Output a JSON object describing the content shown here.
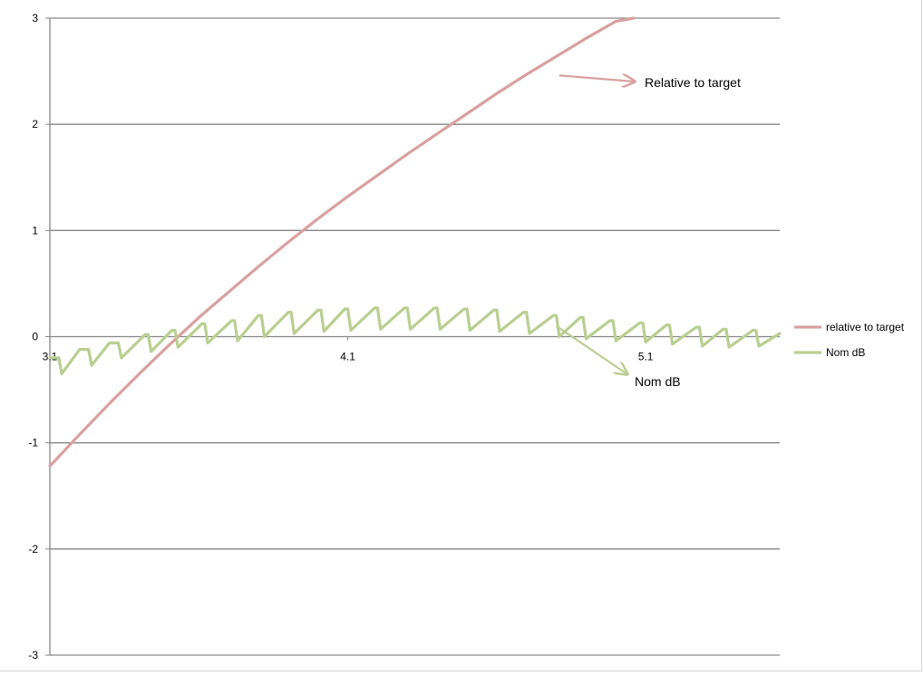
{
  "chart_data": {
    "type": "line",
    "title": "",
    "xlabel": "",
    "ylabel": "",
    "xlim": [
      3.1,
      5.55
    ],
    "ylim": [
      -3,
      3
    ],
    "x_ticks": [
      "3.1",
      "4.1",
      "5.1"
    ],
    "y_ticks": [
      "3",
      "2",
      "1",
      "0",
      "-1",
      "-2",
      "-3"
    ],
    "grid": "horizontal",
    "legend_position": "right",
    "series": [
      {
        "name": "relative to target",
        "color": "#d9a0a0",
        "x": [
          3.1,
          3.2,
          3.3,
          3.4,
          3.5,
          3.6,
          3.7,
          3.8,
          3.9,
          4.0,
          4.1,
          4.2,
          4.3,
          4.4,
          4.5,
          4.6,
          4.7,
          4.8,
          4.9,
          5.0,
          5.06
        ],
        "y": [
          -1.22,
          -0.92,
          -0.63,
          -0.35,
          -0.08,
          0.18,
          0.42,
          0.66,
          0.89,
          1.11,
          1.32,
          1.52,
          1.72,
          1.91,
          2.1,
          2.29,
          2.47,
          2.64,
          2.81,
          2.97,
          3.0
        ]
      },
      {
        "name": "Nom dB",
        "color": "#b9cf91",
        "x": [
          3.1,
          3.13,
          3.14,
          3.2,
          3.23,
          3.24,
          3.3,
          3.33,
          3.34,
          3.42,
          3.43,
          3.44,
          3.51,
          3.52,
          3.53,
          3.61,
          3.62,
          3.63,
          3.71,
          3.72,
          3.73,
          3.8,
          3.81,
          3.82,
          3.9,
          3.91,
          3.92,
          4.0,
          4.01,
          4.02,
          4.09,
          4.1,
          4.11,
          4.19,
          4.2,
          4.21,
          4.29,
          4.3,
          4.31,
          4.39,
          4.4,
          4.41,
          4.49,
          4.5,
          4.51,
          4.59,
          4.6,
          4.61,
          4.69,
          4.7,
          4.71,
          4.79,
          4.8,
          4.81,
          4.88,
          4.89,
          4.9,
          4.98,
          4.99,
          5.0,
          5.08,
          5.09,
          5.1,
          5.17,
          5.18,
          5.19,
          5.27,
          5.28,
          5.29,
          5.36,
          5.37,
          5.38,
          5.46,
          5.47,
          5.48,
          5.55
        ],
        "y": [
          -0.2,
          -0.2,
          -0.35,
          -0.12,
          -0.12,
          -0.27,
          -0.06,
          -0.06,
          -0.2,
          0.02,
          0.02,
          -0.14,
          0.06,
          0.06,
          -0.1,
          0.12,
          0.12,
          -0.06,
          0.15,
          0.15,
          -0.04,
          0.2,
          0.2,
          0.0,
          0.23,
          0.23,
          0.03,
          0.25,
          0.25,
          0.05,
          0.26,
          0.26,
          0.06,
          0.27,
          0.27,
          0.07,
          0.27,
          0.27,
          0.07,
          0.27,
          0.27,
          0.07,
          0.26,
          0.26,
          0.06,
          0.25,
          0.25,
          0.05,
          0.23,
          0.23,
          0.03,
          0.2,
          0.2,
          0.0,
          0.18,
          0.18,
          -0.02,
          0.15,
          0.15,
          -0.04,
          0.13,
          0.13,
          -0.05,
          0.11,
          0.11,
          -0.07,
          0.09,
          0.09,
          -0.09,
          0.07,
          0.07,
          -0.1,
          0.06,
          0.06,
          -0.09,
          0.03
        ]
      }
    ],
    "annotations": [
      {
        "text": "Relative to target",
        "series": "relative to target"
      },
      {
        "text": "Nom dB",
        "series": "Nom dB"
      }
    ]
  }
}
